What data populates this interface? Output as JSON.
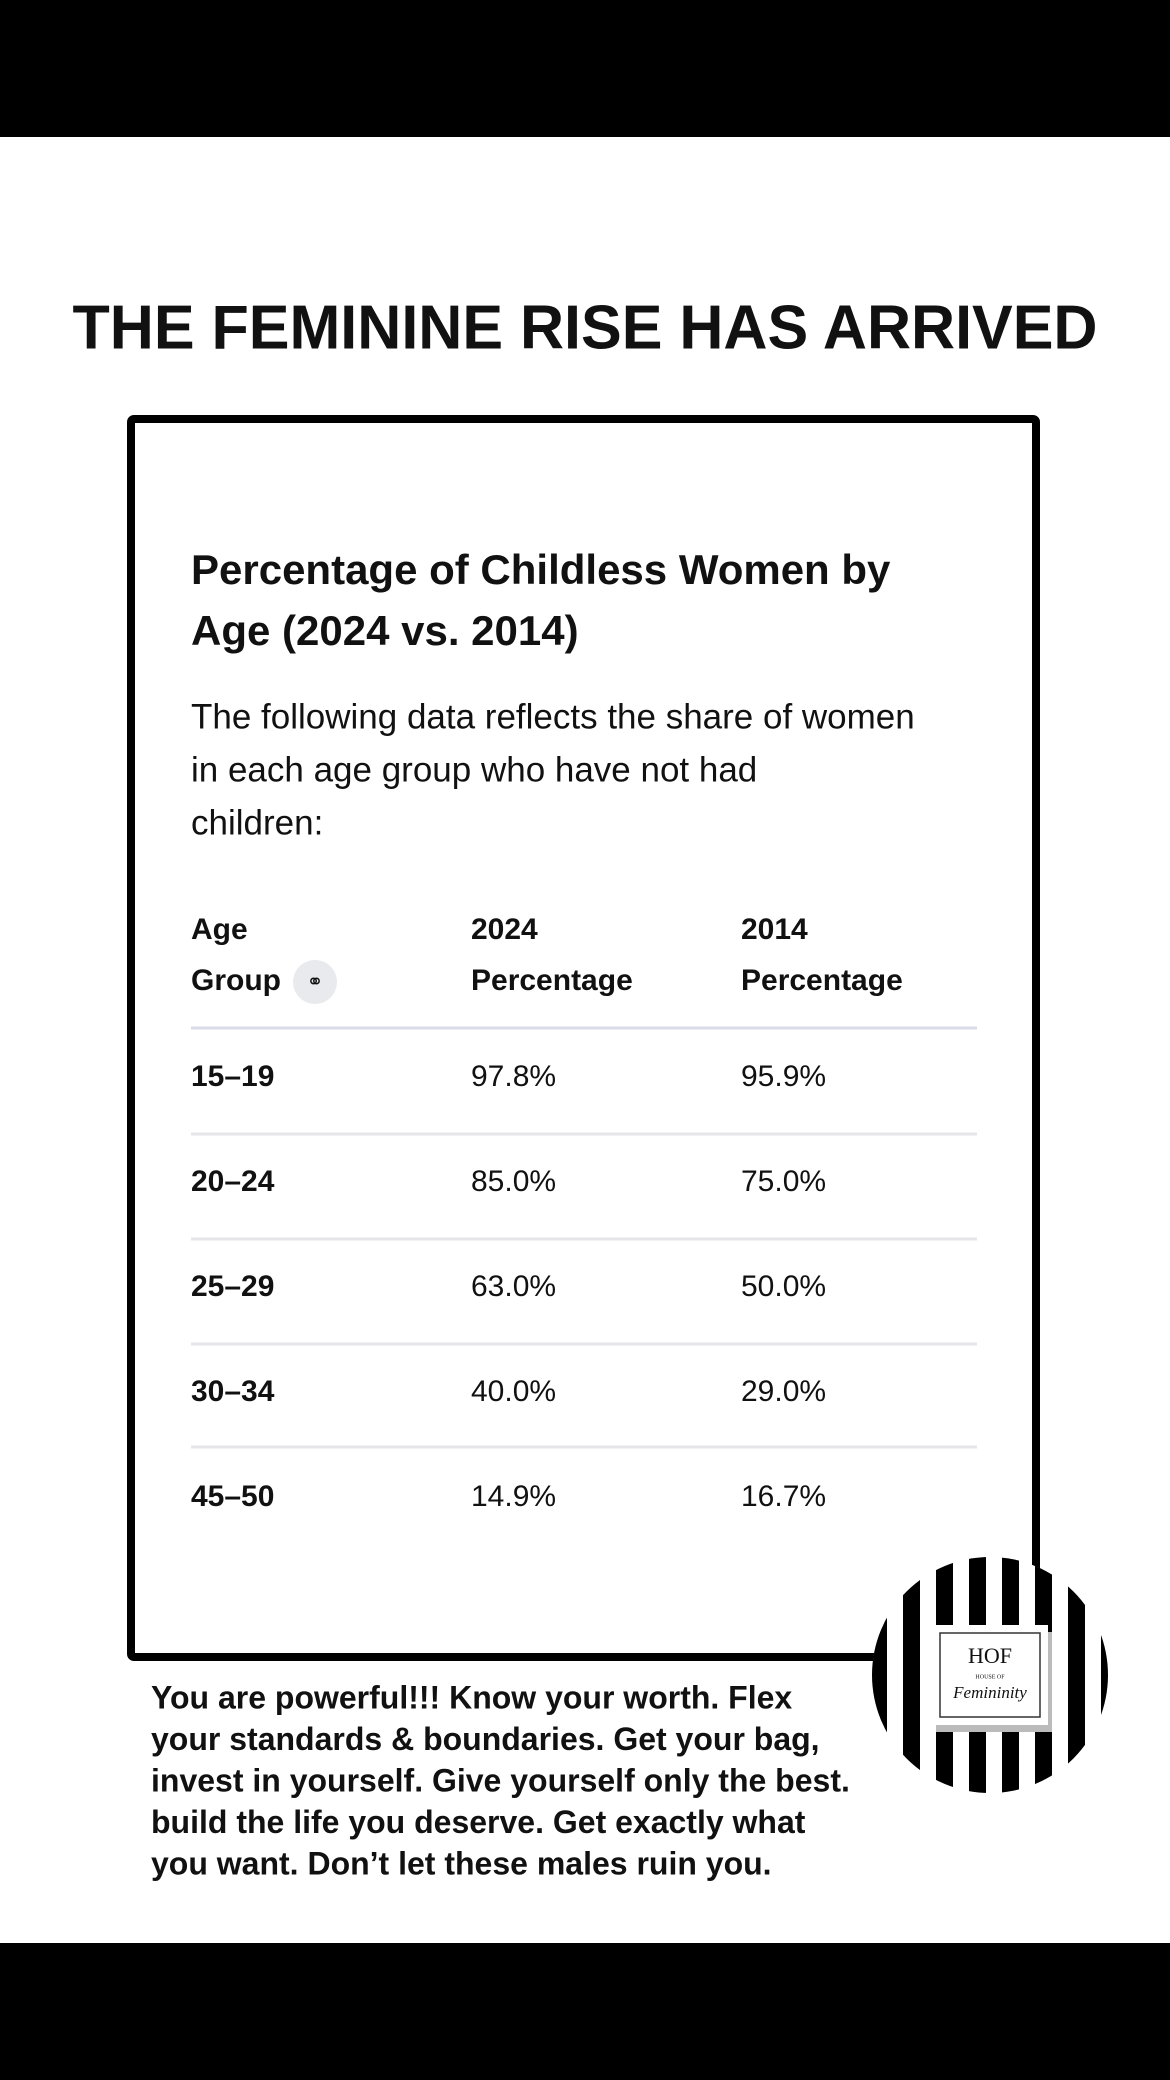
{
  "header": {
    "title": "THE FEMININE RISE HAS ARRIVED"
  },
  "card": {
    "title": [
      "Percentage of Childless Women by",
      "Age (2024 vs. 2014)"
    ],
    "subtitle": [
      "The following data reflects the share of women",
      "in each age group who have not had",
      "children:"
    ]
  },
  "table": {
    "headers": [
      [
        "Age",
        "Group"
      ],
      [
        "2024",
        "Percentage"
      ],
      [
        "2014",
        "Percentage"
      ]
    ],
    "rows": [
      [
        "15–19",
        "97.8%",
        "95.9%"
      ],
      [
        "20–24",
        "85.0%",
        "75.0%"
      ],
      [
        "25–29",
        "63.0%",
        "50.0%"
      ],
      [
        "30–34",
        "40.0%",
        "29.0%"
      ],
      [
        "45–50",
        "14.9%",
        "16.7%"
      ]
    ]
  },
  "caption": [
    "You are powerful!!! Know your worth. Flex",
    "your standards & boundaries. Get your bag,",
    "invest in yourself. Give yourself only the best.",
    "build the life you deserve. Get exactly what",
    "you want. Don’t let these males ruin you."
  ],
  "logo": {
    "mark": "HOF",
    "small": "HOUSE OF",
    "script": "Femininity"
  }
}
